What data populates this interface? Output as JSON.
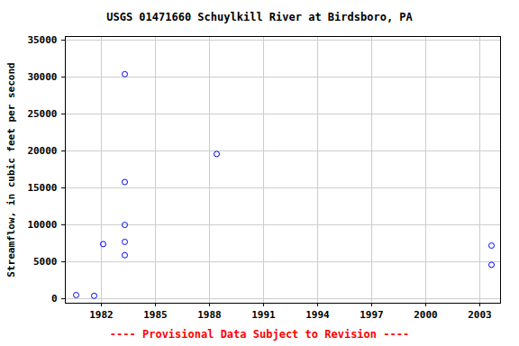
{
  "chart_data": {
    "type": "scatter",
    "title": "USGS 01471660 Schuylkill River at Birdsboro, PA",
    "caption": "---- Provisional Data Subject to Revision ----",
    "y_label": "Streamflow, in cubic feet per second",
    "x": [
      1980.6,
      1981.6,
      1982.1,
      1983.3,
      1983.3,
      1983.3,
      1983.3,
      1983.3,
      1988.4,
      2003.65,
      2003.65
    ],
    "values": [
      500,
      400,
      7400,
      30400,
      15800,
      10000,
      7700,
      5900,
      19600,
      7200,
      4600
    ],
    "color": "#0000ff",
    "marker": "circle-open",
    "xlim": [
      1980,
      2004.15
    ],
    "xticks": [
      1982,
      1985,
      1988,
      1991,
      1994,
      1997,
      2000,
      2003
    ],
    "ylim": [
      -600,
      35500
    ],
    "yticks": [
      0,
      5000,
      10000,
      15000,
      20000,
      25000,
      30000,
      35000
    ],
    "grid": true
  }
}
